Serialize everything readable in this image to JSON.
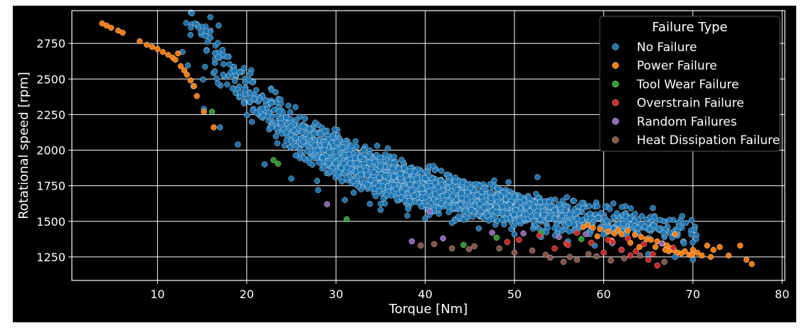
{
  "chart_data": {
    "type": "scatter",
    "title": "",
    "xlabel": "Torque [Nm]",
    "ylabel": "Rotational speed [rpm]",
    "xlim": [
      0.4,
      80.3
    ],
    "ylim": [
      1085,
      2980
    ],
    "x_ticks": [
      10,
      20,
      30,
      40,
      50,
      60,
      70,
      80
    ],
    "y_ticks": [
      1250,
      1500,
      1750,
      2000,
      2250,
      2500,
      2750
    ],
    "grid": true,
    "legend": {
      "title": "Failure Type",
      "placement": "upper-right"
    },
    "colors": {
      "background": "#000000",
      "grid": "#ffffff",
      "marker_edge": "#ffffff"
    },
    "series": [
      {
        "name": "No Failure",
        "color": "#1f77b4",
        "trend": {
          "a": 16.65,
          "b": 1.3,
          "c": 4.2,
          "d": 1055
        },
        "noise_sd": 55,
        "torque_range": [
          12.5,
          70.5
        ],
        "sample_count": 2600,
        "points": [
          [
            12.8,
            2690
          ],
          [
            13.4,
            2595
          ],
          [
            14.0,
            2450
          ],
          [
            15.2,
            2290
          ],
          [
            17.0,
            2160
          ],
          [
            19.0,
            2040
          ],
          [
            22.0,
            1900
          ],
          [
            25.0,
            1800
          ],
          [
            28.0,
            1720
          ],
          [
            31.0,
            1650
          ],
          [
            35.0,
            1580
          ],
          [
            38.0,
            1540
          ],
          [
            40.0,
            1520
          ],
          [
            43.0,
            1490
          ],
          [
            46.0,
            1450
          ],
          [
            50.0,
            1410
          ],
          [
            53.0,
            1390
          ],
          [
            56.0,
            1360
          ],
          [
            59.0,
            1330
          ],
          [
            62.0,
            1300
          ],
          [
            65.0,
            1270
          ],
          [
            68.0,
            1250
          ],
          [
            70.0,
            1230
          ]
        ]
      },
      {
        "name": "Power Failure",
        "color": "#ff7f0e",
        "points": [
          [
            3.8,
            2890
          ],
          [
            4.3,
            2875
          ],
          [
            4.8,
            2860
          ],
          [
            5.6,
            2840
          ],
          [
            6.1,
            2825
          ],
          [
            8.0,
            2765
          ],
          [
            8.8,
            2740
          ],
          [
            9.4,
            2725
          ],
          [
            10.0,
            2710
          ],
          [
            10.6,
            2690
          ],
          [
            11.2,
            2670
          ],
          [
            11.7,
            2650
          ],
          [
            12.0,
            2635
          ],
          [
            12.3,
            2680
          ],
          [
            12.6,
            2590
          ],
          [
            13.0,
            2560
          ],
          [
            13.3,
            2530
          ],
          [
            13.7,
            2490
          ],
          [
            14.1,
            2450
          ],
          [
            14.4,
            2380
          ],
          [
            15.2,
            2270
          ],
          [
            16.3,
            2160
          ],
          [
            58.2,
            1475
          ],
          [
            58.8,
            1455
          ],
          [
            59.6,
            1445
          ],
          [
            60.5,
            1430
          ],
          [
            61.2,
            1415
          ],
          [
            62.0,
            1410
          ],
          [
            62.7,
            1435
          ],
          [
            63.5,
            1405
          ],
          [
            64.2,
            1390
          ],
          [
            64.8,
            1375
          ],
          [
            65.3,
            1370
          ],
          [
            66.0,
            1360
          ],
          [
            66.6,
            1345
          ],
          [
            67.1,
            1330
          ],
          [
            67.5,
            1310
          ],
          [
            67.9,
            1295
          ],
          [
            68.3,
            1280
          ],
          [
            68.7,
            1275
          ],
          [
            69.1,
            1290
          ],
          [
            69.6,
            1265
          ],
          [
            70.0,
            1300
          ],
          [
            70.5,
            1280
          ],
          [
            71.0,
            1260
          ],
          [
            71.6,
            1330
          ],
          [
            72.3,
            1300
          ],
          [
            73.0,
            1320
          ],
          [
            74.0,
            1260
          ],
          [
            75.3,
            1330
          ],
          [
            76.0,
            1230
          ],
          [
            76.6,
            1200
          ],
          [
            60.9,
            1365
          ],
          [
            63.0,
            1350
          ],
          [
            65.8,
            1320
          ],
          [
            67.3,
            1290
          ],
          [
            69.9,
            1265
          ],
          [
            72.0,
            1250
          ],
          [
            68.0,
            1410
          ],
          [
            66.9,
            1300
          ],
          [
            64.0,
            1320
          ],
          [
            61.6,
            1440
          ],
          [
            59.3,
            1395
          ],
          [
            57.7,
            1460
          ]
        ]
      },
      {
        "name": "Tool Wear Failure",
        "color": "#2ca02c",
        "points": [
          [
            16.1,
            2270
          ],
          [
            23.0,
            1930
          ],
          [
            23.5,
            1905
          ],
          [
            31.2,
            1515
          ],
          [
            44.3,
            1335
          ],
          [
            48.0,
            1385
          ],
          [
            53.0,
            1420
          ],
          [
            57.5,
            1375
          ]
        ]
      },
      {
        "name": "Overstrain Failure",
        "color": "#d62728",
        "points": [
          [
            49.2,
            1355
          ],
          [
            52.8,
            1400
          ],
          [
            55.8,
            1345
          ],
          [
            56.0,
            1335
          ],
          [
            60.5,
            1370
          ],
          [
            61.0,
            1355
          ],
          [
            62.0,
            1300
          ],
          [
            63.6,
            1290
          ],
          [
            65.0,
            1230
          ],
          [
            65.5,
            1270
          ],
          [
            66.0,
            1190
          ],
          [
            67.8,
            1315
          ],
          [
            58.6,
            1350
          ],
          [
            60.0,
            1280
          ],
          [
            64.5,
            1340
          ],
          [
            62.7,
            1380
          ],
          [
            54.5,
            1310
          ],
          [
            57.0,
            1420
          ],
          [
            50.5,
            1370
          ],
          [
            63.0,
            1260
          ]
        ]
      },
      {
        "name": "Random Failures",
        "color": "#9467bd",
        "points": [
          [
            29.0,
            1620
          ],
          [
            38.5,
            1360
          ],
          [
            42.0,
            1380
          ],
          [
            47.5,
            1420
          ],
          [
            51.0,
            1415
          ],
          [
            58.0,
            1410
          ],
          [
            66.5,
            1345
          ],
          [
            40.5,
            1570
          ],
          [
            55.0,
            1390
          ]
        ]
      },
      {
        "name": "Heat Dissipation Failure",
        "color": "#8c564b",
        "points": [
          [
            41.0,
            1340
          ],
          [
            44.9,
            1305
          ],
          [
            45.5,
            1325
          ],
          [
            48.3,
            1310
          ],
          [
            53.5,
            1265
          ],
          [
            54.0,
            1245
          ],
          [
            55.5,
            1215
          ],
          [
            56.2,
            1250
          ],
          [
            57.0,
            1230
          ],
          [
            58.3,
            1270
          ],
          [
            59.2,
            1255
          ],
          [
            62.3,
            1240
          ],
          [
            64.1,
            1260
          ],
          [
            66.8,
            1215
          ],
          [
            39.5,
            1330
          ],
          [
            43.0,
            1310
          ],
          [
            50.0,
            1280
          ],
          [
            52.0,
            1295
          ],
          [
            60.8,
            1225
          ]
        ]
      }
    ]
  }
}
